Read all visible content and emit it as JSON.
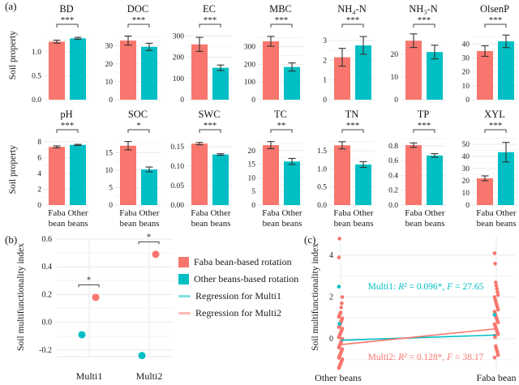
{
  "colors": {
    "faba": "#F8766D",
    "other": "#00BFC4",
    "error_bar": "#333333",
    "grid_major": "#e9e9e9",
    "grid_minor": "#f4f4f4",
    "text": "#1a1a1a"
  },
  "legend": {
    "items": [
      {
        "swatch": "square",
        "color": "#F8766D",
        "label": "Faba bean-based rotation"
      },
      {
        "swatch": "square",
        "color": "#00BFC4",
        "label": "Other beans-based rotation"
      },
      {
        "swatch": "line",
        "color": "#00BFC4",
        "label": "Regression for Multi1"
      },
      {
        "swatch": "line",
        "color": "#F8766D",
        "label": "Regression for Multi2"
      }
    ]
  },
  "chart_data": [
    {
      "id": "panel-a",
      "type": "bar",
      "label": "(a)",
      "ylabel": "Soil property",
      "categories": [
        "Faba bean",
        "Other beans"
      ],
      "series_names": [
        "Faba bean-based rotation",
        "Other beans-based rotation"
      ],
      "charts": [
        {
          "title": "BD",
          "sig": "***",
          "values": [
            1.21,
            1.28
          ],
          "errors": [
            0.03,
            0.02
          ],
          "yticks": [
            0,
            0.5,
            1.0
          ],
          "tick_labels": [
            "0.0",
            "0.5",
            "1.0"
          ],
          "ymax": 1.42
        },
        {
          "title": "DOC",
          "sig": "***",
          "values": [
            33,
            29.5
          ],
          "errors": [
            2.5,
            2
          ],
          "yticks": [
            0,
            10,
            20,
            30
          ],
          "tick_labels": [
            "0",
            "10",
            "20",
            "30"
          ],
          "ymax": 38
        },
        {
          "title": "EC",
          "sig": "***",
          "values": [
            260,
            150
          ],
          "errors": [
            33,
            13
          ],
          "yticks": [
            0,
            100,
            200,
            300
          ],
          "tick_labels": [
            "0",
            "100",
            "200",
            "300"
          ],
          "ymax": 320
        },
        {
          "title": "MBC",
          "sig": "***",
          "values": [
            330,
            185
          ],
          "errors": [
            28,
            23
          ],
          "yticks": [
            0,
            100,
            200,
            300
          ],
          "tick_labels": [
            "0",
            "100",
            "200",
            "300"
          ],
          "ymax": 385
        },
        {
          "title": "NH₄-N",
          "sig": "***",
          "values": [
            2.15,
            2.75
          ],
          "errors": [
            0.45,
            0.45
          ],
          "yticks": [
            0,
            1,
            2,
            3
          ],
          "tick_labels": [
            "0",
            "1",
            "2",
            "3"
          ],
          "ymax": 3.45
        },
        {
          "title": "NH₃-N",
          "sig": "***",
          "values": [
            26,
            21
          ],
          "errors": [
            3,
            3
          ],
          "yticks": [
            0,
            10,
            20
          ],
          "tick_labels": [
            "0",
            "10",
            "20"
          ],
          "ymax": 30
        },
        {
          "title": "OlsenP",
          "sig": "***",
          "values": [
            35,
            42
          ],
          "errors": [
            3.8,
            4.5
          ],
          "yticks": [
            0,
            10,
            20,
            30,
            40
          ],
          "tick_labels": [
            "0",
            "10",
            "20",
            "30",
            "40"
          ],
          "ymax": 49
        },
        {
          "title": "pH",
          "sig": "***",
          "values": [
            7.35,
            7.6
          ],
          "errors": [
            0.13,
            0.07
          ],
          "yticks": [
            0,
            2,
            4,
            6,
            8
          ],
          "tick_labels": [
            "0",
            "2",
            "4",
            "6",
            "8"
          ],
          "ymax": 8.6
        },
        {
          "title": "SOC",
          "sig": "*",
          "values": [
            17,
            10.2
          ],
          "errors": [
            1.2,
            0.7
          ],
          "yticks": [
            0,
            5,
            10,
            15
          ],
          "tick_labels": [
            "0",
            "5",
            "10",
            "15"
          ],
          "ymax": 19.5
        },
        {
          "title": "SWC",
          "sig": "***",
          "values": [
            0.158,
            0.13
          ],
          "errors": [
            0.003,
            0.002
          ],
          "yticks": [
            0,
            0.05,
            0.1,
            0.15
          ],
          "tick_labels": [
            "0.00",
            "0.05",
            "0.10",
            "0.15"
          ],
          "ymax": 0.175
        },
        {
          "title": "TC",
          "sig": "**",
          "values": [
            22,
            16
          ],
          "errors": [
            1.3,
            1.1
          ],
          "yticks": [
            0,
            5,
            10,
            15,
            20
          ],
          "tick_labels": [
            "0",
            "5",
            "10",
            "15",
            "20"
          ],
          "ymax": 25
        },
        {
          "title": "TN",
          "sig": "***",
          "values": [
            1.65,
            1.12
          ],
          "errors": [
            0.1,
            0.08
          ],
          "yticks": [
            0,
            0.5,
            1.0,
            1.5
          ],
          "tick_labels": [
            "0.0",
            "0.5",
            "1.0",
            "1.5"
          ],
          "ymax": 1.88
        },
        {
          "title": "TP",
          "sig": "***",
          "values": [
            0.81,
            0.67
          ],
          "errors": [
            0.03,
            0.025
          ],
          "yticks": [
            0,
            0.2,
            0.4,
            0.6,
            0.8
          ],
          "tick_labels": [
            "0.0",
            "0.2",
            "0.4",
            "0.6",
            "0.8"
          ],
          "ymax": 0.92
        },
        {
          "title": "XYL",
          "sig": "***",
          "values": [
            22,
            43.5
          ],
          "errors": [
            2,
            8
          ],
          "yticks": [
            0,
            10,
            20,
            30,
            40,
            50
          ],
          "tick_labels": [
            "0",
            "10",
            "20",
            "30",
            "40",
            "50"
          ],
          "ymax": 56
        }
      ]
    },
    {
      "id": "panel-b",
      "type": "scatter",
      "label": "(b)",
      "ylabel": "Soil multifunctionality index",
      "groups": [
        "Multi1",
        "Multi2"
      ],
      "yticks": [
        -0.2,
        0.0,
        0.2,
        0.4,
        0.6
      ],
      "tick_labels": [
        "-0.2",
        "0.0",
        "0.2",
        "0.4",
        "0.6"
      ],
      "ymin": -0.26,
      "ymax": 0.65,
      "points": [
        {
          "group": "Multi1",
          "series": "other",
          "value": -0.09
        },
        {
          "group": "Multi1",
          "series": "faba",
          "value": 0.18
        },
        {
          "group": "Multi2",
          "series": "other",
          "value": -0.24
        },
        {
          "group": "Multi2",
          "series": "faba",
          "value": 0.49
        }
      ],
      "sig": [
        {
          "group": "Multi1",
          "label": "*",
          "y": 0.27
        },
        {
          "group": "Multi2",
          "label": "*",
          "y": 0.58
        }
      ]
    },
    {
      "id": "panel-c",
      "type": "scatter",
      "label": "(c)",
      "ylabel": "Soil multifunctionality index",
      "categories": [
        "Other beans",
        "Faba bean"
      ],
      "yticks": [
        0,
        2,
        4
      ],
      "tick_labels": [
        "0",
        "2",
        "4"
      ],
      "ymin": -1.5,
      "ymax": 5.0,
      "annotations": [
        {
          "text": "Multi1: R² = 0.096*, F = 27.65",
          "color": "#00BFC4",
          "y": 2.37
        },
        {
          "text": "Multi2: R² = 0.128*, F = 38.17",
          "color": "#F8766D",
          "y": -1.0
        }
      ],
      "regression": [
        {
          "name": "Multi1",
          "color": "#00BFC4",
          "y_other": -0.07,
          "y_faba": 0.18
        },
        {
          "name": "Multi2",
          "color": "#F8766D",
          "y_other": -0.28,
          "y_faba": 0.48
        }
      ],
      "points": {
        "other_red": [
          -1.4,
          -1.33,
          -1.26,
          -1.19,
          -1.12,
          -1.05,
          -0.98,
          -0.91,
          -0.84,
          -0.77,
          -0.7,
          -0.63,
          -0.56,
          -0.49,
          -0.42,
          -0.35,
          -0.28,
          -0.21,
          -0.14,
          -0.07,
          0,
          0.07,
          0.14,
          0.21,
          0.28,
          0.35,
          0.42,
          0.49,
          0.56,
          0.63,
          0.7,
          0.77,
          0.84,
          0.91,
          0.98,
          1.05,
          1.12,
          1.19,
          1.26,
          1.5,
          1.7,
          2.0,
          3.9,
          4.8
        ],
        "other_teal": [
          2.5,
          0.72
        ],
        "faba_red": [
          4.1,
          3.6,
          2.7,
          2.55,
          2.4,
          2.25,
          2.1,
          2.0,
          1.9,
          1.8,
          1.7,
          1.6,
          1.5,
          1.4,
          1.3,
          1.2,
          1.1,
          1.02,
          0.94,
          0.86,
          0.78,
          0.7,
          0.62,
          0.54,
          0.46,
          0.38,
          0.3,
          0.22,
          0.15,
          0.08,
          -0.35,
          -0.45,
          -0.55,
          -0.65,
          -0.78,
          -0.9
        ],
        "faba_teal": [
          1.15
        ]
      }
    }
  ]
}
